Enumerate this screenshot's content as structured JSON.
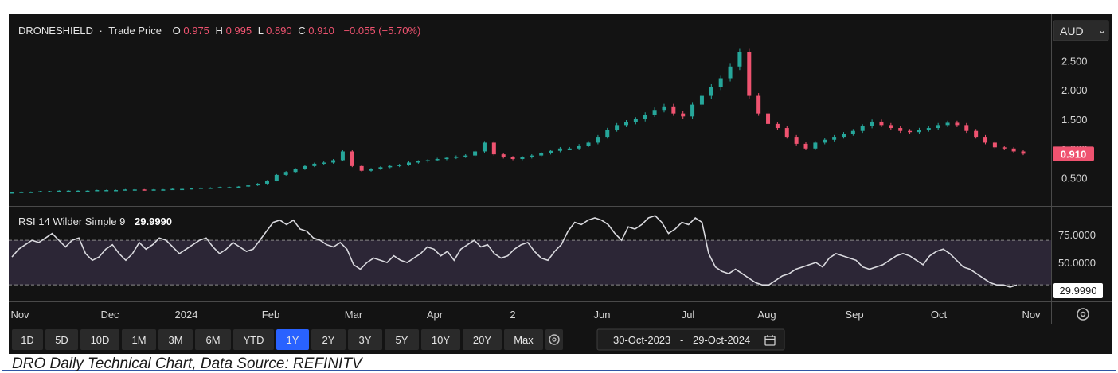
{
  "header": {
    "symbol": "DRONESHIELD",
    "separator": "·",
    "series_label": "Trade Price",
    "open_key": "O",
    "open": "0.975",
    "high_key": "H",
    "high": "0.995",
    "low_key": "L",
    "low": "0.890",
    "close_key": "C",
    "close": "0.910",
    "change": "−0.055 (−5.70%)"
  },
  "currency": {
    "label": "AUD",
    "caret": "⌄"
  },
  "rsi_header": {
    "label": "RSI 14 Wilder Simple 9",
    "value": "29.9990"
  },
  "colors": {
    "up": "#26a69a",
    "down": "#ef5370",
    "background": "#131313",
    "rsi_band": "#2c2636",
    "rsi_line": "#d9d9de",
    "active_range": "#2962ff"
  },
  "toolbar": {
    "ranges": [
      "1D",
      "5D",
      "10D",
      "1M",
      "3M",
      "6M",
      "YTD",
      "1Y",
      "2Y",
      "3Y",
      "5Y",
      "10Y",
      "20Y",
      "Max"
    ],
    "active": "1Y",
    "settings_icon": "gear-icon",
    "date_from": "30-Oct-2023",
    "date_sep": "-",
    "date_to": "29-Oct-2024",
    "calendar_icon": "calendar-icon"
  },
  "axis_settings_icon": "gear-icon",
  "caption": "DRO Daily Technical Chart, Data Source: REFINITV",
  "chart_data": [
    {
      "type": "candlestick",
      "title": "DRONESHIELD · Trade Price",
      "x_tick_labels": [
        "Nov",
        "Dec",
        "2024",
        "Feb",
        "Mar",
        "Apr",
        "2",
        "Jun",
        "Jul",
        "Aug",
        "Sep",
        "Oct",
        "Nov"
      ],
      "x_range": [
        "2023-10-30",
        "2024-11-08"
      ],
      "ylim": [
        0.1,
        2.9
      ],
      "y_tick_labels": [
        "2.500",
        "2.000",
        "1.500",
        "1.000",
        "0.500"
      ],
      "y_ticks": [
        2.5,
        2.0,
        1.5,
        1.0,
        0.5
      ],
      "last_price_label": "0.910",
      "last_price": 0.91,
      "series": [
        {
          "name": "DRONESHIELD",
          "close": [
            0.25,
            0.26,
            0.26,
            0.27,
            0.27,
            0.28,
            0.28,
            0.28,
            0.28,
            0.29,
            0.29,
            0.29,
            0.3,
            0.3,
            0.29,
            0.3,
            0.3,
            0.31,
            0.31,
            0.32,
            0.33,
            0.33,
            0.34,
            0.34,
            0.35,
            0.37,
            0.4,
            0.45,
            0.55,
            0.6,
            0.65,
            0.7,
            0.74,
            0.76,
            0.8,
            0.95,
            0.7,
            0.62,
            0.65,
            0.68,
            0.7,
            0.72,
            0.76,
            0.78,
            0.8,
            0.82,
            0.84,
            0.86,
            0.88,
            0.95,
            1.1,
            0.9,
            0.85,
            0.82,
            0.85,
            0.88,
            0.92,
            0.96,
            1.0,
            1.0,
            1.05,
            1.1,
            1.2,
            1.32,
            1.4,
            1.45,
            1.5,
            1.58,
            1.66,
            1.72,
            1.6,
            1.55,
            1.75,
            1.9,
            2.05,
            2.2,
            2.4,
            2.65,
            1.9,
            1.6,
            1.42,
            1.35,
            1.2,
            1.08,
            1.0,
            1.1,
            1.15,
            1.2,
            1.25,
            1.3,
            1.38,
            1.46,
            1.4,
            1.35,
            1.3,
            1.28,
            1.32,
            1.35,
            1.4,
            1.44,
            1.4,
            1.3,
            1.2,
            1.1,
            1.02,
            1.0,
            0.95,
            0.91
          ]
        }
      ]
    },
    {
      "type": "line",
      "title": "RSI 14 Wilder Simple 9",
      "x_tick_labels": [
        "Nov",
        "Dec",
        "2024",
        "Feb",
        "Mar",
        "Apr",
        "2",
        "Jun",
        "Jul",
        "Aug",
        "Sep",
        "Oct",
        "Nov"
      ],
      "ylim": [
        18,
        95
      ],
      "y_tick_labels": [
        "75.0000",
        "50.0000"
      ],
      "y_ticks": [
        75,
        50
      ],
      "band": [
        30,
        70
      ],
      "last_value_label": "29.9990",
      "series": [
        {
          "name": "RSI",
          "values": [
            55,
            62,
            66,
            70,
            68,
            72,
            76,
            70,
            64,
            70,
            72,
            58,
            52,
            55,
            62,
            66,
            58,
            52,
            58,
            68,
            62,
            66,
            72,
            70,
            64,
            58,
            62,
            66,
            70,
            72,
            64,
            58,
            62,
            68,
            64,
            60,
            62,
            70,
            78,
            86,
            88,
            84,
            88,
            80,
            78,
            72,
            70,
            66,
            64,
            68,
            62,
            48,
            44,
            50,
            54,
            52,
            50,
            56,
            52,
            50,
            54,
            58,
            64,
            62,
            56,
            60,
            52,
            62,
            66,
            70,
            64,
            66,
            58,
            54,
            56,
            62,
            66,
            68,
            60,
            54,
            52,
            60,
            66,
            78,
            86,
            84,
            88,
            90,
            88,
            84,
            76,
            70,
            82,
            80,
            84,
            90,
            92,
            86,
            76,
            80,
            86,
            84,
            90,
            86,
            58,
            46,
            42,
            40,
            44,
            40,
            36,
            32,
            30,
            30,
            34,
            38,
            40,
            44,
            46,
            48,
            50,
            46,
            54,
            58,
            56,
            54,
            52,
            46,
            44,
            46,
            48,
            52,
            56,
            58,
            56,
            52,
            48,
            56,
            60,
            62,
            58,
            52,
            46,
            44,
            40,
            36,
            32,
            30,
            30,
            28,
            30
          ]
        }
      ]
    }
  ]
}
